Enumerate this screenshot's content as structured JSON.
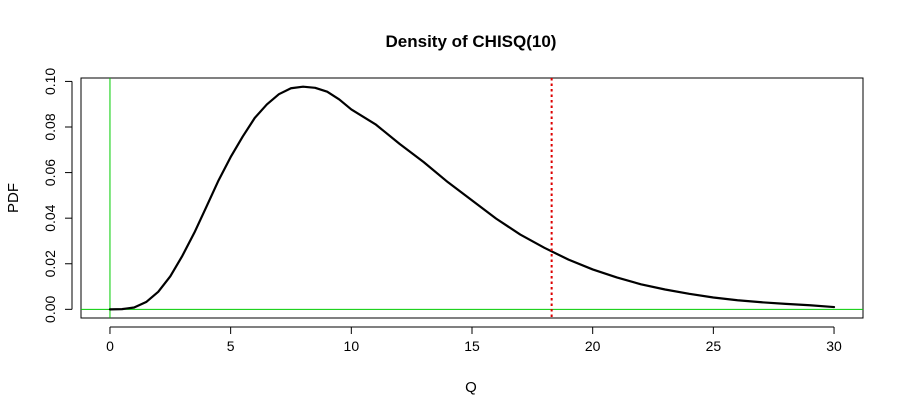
{
  "chart_data": {
    "type": "line",
    "title": "Density of CHISQ(10)",
    "xlabel": "Q",
    "ylabel": "PDF",
    "xlim": [
      -1.2,
      31.2
    ],
    "ylim": [
      -0.0038,
      0.1015
    ],
    "x_ticks": [
      "0",
      "5",
      "10",
      "15",
      "20",
      "25",
      "30"
    ],
    "y_ticks": [
      "0.00",
      "0.02",
      "0.04",
      "0.06",
      "0.08",
      "0.10"
    ],
    "grid": false,
    "series": [
      {
        "x": [
          0,
          0.5,
          1,
          1.5,
          2,
          2.5,
          3,
          3.5,
          4,
          4.5,
          5,
          5.5,
          6,
          6.5,
          7,
          7.5,
          8,
          8.5,
          9,
          9.5,
          10,
          11,
          12,
          13,
          14,
          15,
          16,
          17,
          18,
          19,
          20,
          21,
          22,
          23,
          24,
          25,
          26,
          27,
          28,
          29,
          30
        ],
        "y": [
          0,
          0.0001,
          0.0008,
          0.0032,
          0.0077,
          0.0145,
          0.0235,
          0.0337,
          0.0451,
          0.0566,
          0.0668,
          0.0758,
          0.084,
          0.0899,
          0.0944,
          0.097,
          0.0977,
          0.0972,
          0.0955,
          0.0921,
          0.0877,
          0.0812,
          0.0726,
          0.0646,
          0.0558,
          0.0478,
          0.0398,
          0.0328,
          0.027,
          0.0218,
          0.0175,
          0.014,
          0.011,
          0.0087,
          0.0068,
          0.0052,
          0.004,
          0.0031,
          0.0024,
          0.0018,
          0.001
        ],
        "color": "#000000"
      }
    ],
    "reference_lines": {
      "vertical_green_x": 0,
      "horizontal_green_y": 0,
      "green_color": "#00cc00",
      "critical_x": 18.3,
      "critical_color": "#dd0000"
    }
  }
}
